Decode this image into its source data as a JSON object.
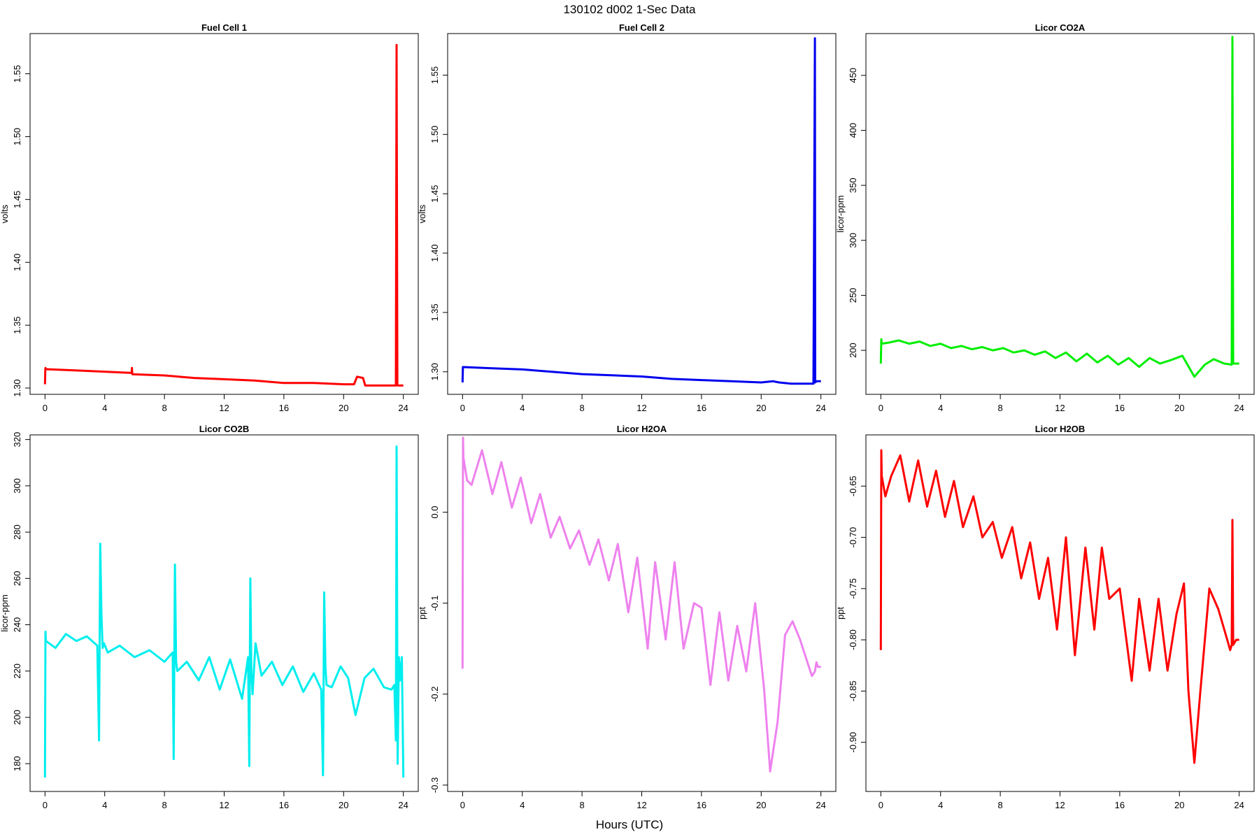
{
  "title": "130102   d002   1-Sec Data",
  "xlabel": "Hours (UTC)",
  "chart_data": [
    {
      "type": "line",
      "title": "Fuel Cell 1",
      "ylabel": "volts",
      "color": "#ff0000",
      "xlim": [
        -1.0,
        25.0
      ],
      "ylim": [
        1.295,
        1.582
      ],
      "xticks": [
        0,
        4,
        8,
        12,
        16,
        20,
        24
      ],
      "yticks": [
        1.3,
        1.35,
        1.4,
        1.45,
        1.5,
        1.55
      ],
      "ytick_labels": [
        "1.30",
        "1.35",
        "1.40",
        "1.45",
        "1.50",
        "1.55"
      ],
      "series": [
        {
          "x": [
            0,
            0.02,
            0.03,
            0.04,
            2,
            4,
            5.8,
            5.82,
            5.85,
            8,
            10,
            12,
            14,
            16,
            18,
            20,
            20.7,
            20.9,
            21.3,
            21.45,
            22,
            23.4,
            23.5,
            23.55,
            23.6,
            24
          ],
          "y": [
            1.303,
            1.315,
            1.316,
            1.315,
            1.314,
            1.313,
            1.312,
            1.316,
            1.311,
            1.31,
            1.308,
            1.307,
            1.306,
            1.304,
            1.304,
            1.303,
            1.303,
            1.309,
            1.308,
            1.302,
            1.302,
            1.302,
            1.302,
            1.573,
            1.302,
            1.302
          ]
        }
      ]
    },
    {
      "type": "line",
      "title": "Fuel Cell 2",
      "ylabel": "volts",
      "color": "#0000ee",
      "xlim": [
        -1.0,
        25.0
      ],
      "ylim": [
        1.281,
        1.585
      ],
      "xticks": [
        0,
        4,
        8,
        12,
        16,
        20,
        24
      ],
      "yticks": [
        1.3,
        1.35,
        1.4,
        1.45,
        1.5,
        1.55
      ],
      "ytick_labels": [
        "1.30",
        "1.35",
        "1.40",
        "1.45",
        "1.50",
        "1.55"
      ],
      "series": [
        {
          "x": [
            0,
            0.02,
            0.04,
            2,
            4,
            6,
            8,
            10,
            12,
            14,
            16,
            18,
            20,
            20.8,
            21.2,
            22,
            23.5,
            23.6,
            23.62,
            23.7,
            24
          ],
          "y": [
            1.291,
            1.304,
            1.304,
            1.303,
            1.302,
            1.3,
            1.298,
            1.297,
            1.296,
            1.294,
            1.293,
            1.292,
            1.291,
            1.292,
            1.291,
            1.29,
            1.29,
            1.581,
            1.291,
            1.292,
            1.292
          ]
        }
      ]
    },
    {
      "type": "line",
      "title": "Licor CO2A",
      "ylabel": "licor-ppm",
      "color": "#00ee00",
      "xlim": [
        -1.0,
        25.0
      ],
      "ylim": [
        160,
        488
      ],
      "xticks": [
        0,
        4,
        8,
        12,
        16,
        20,
        24
      ],
      "yticks": [
        200,
        250,
        300,
        350,
        400,
        450
      ],
      "ytick_labels": [
        "200",
        "250",
        "300",
        "350",
        "400",
        "450"
      ],
      "series": [
        {
          "x": [
            0,
            0.03,
            0.06,
            0.5,
            1.2,
            1.9,
            2.6,
            3.3,
            4.0,
            4.7,
            5.4,
            6.1,
            6.8,
            7.5,
            8.2,
            8.9,
            9.6,
            10.3,
            11.0,
            11.7,
            12.4,
            13.1,
            13.8,
            14.5,
            15.2,
            15.9,
            16.6,
            17.3,
            18.0,
            18.7,
            19.4,
            20.2,
            21.0,
            21.7,
            22.3,
            23.0,
            23.5,
            23.55,
            23.6,
            24
          ],
          "y": [
            188,
            210,
            206,
            207,
            209,
            206,
            208,
            204,
            206,
            202,
            204,
            201,
            203,
            200,
            202,
            198,
            200,
            196,
            199,
            193,
            198,
            190,
            197,
            189,
            195,
            187,
            193,
            185,
            193,
            188,
            191,
            195,
            176,
            187,
            192,
            188,
            187,
            485,
            188,
            188
          ]
        }
      ]
    },
    {
      "type": "line",
      "title": "Licor CO2B",
      "ylabel": "licor-ppm",
      "color": "#00eeee",
      "xlim": [
        -1.0,
        25.0
      ],
      "ylim": [
        168,
        322
      ],
      "xticks": [
        0,
        4,
        8,
        12,
        16,
        20,
        24
      ],
      "yticks": [
        180,
        200,
        220,
        240,
        260,
        280,
        300,
        320
      ],
      "ytick_labels": [
        "180",
        "200",
        "220",
        "240",
        "260",
        "280",
        "300",
        "320"
      ],
      "series": [
        {
          "x": [
            0,
            0.03,
            0.06,
            0.7,
            1.4,
            2.1,
            2.8,
            3.5,
            3.62,
            3.7,
            3.78,
            3.86,
            3.95,
            4.2,
            5.0,
            6.0,
            7.0,
            8.0,
            8.55,
            8.62,
            8.7,
            8.78,
            8.86,
            9.5,
            10.3,
            11.0,
            11.7,
            12.4,
            13.2,
            13.6,
            13.68,
            13.75,
            13.82,
            13.9,
            14.1,
            14.5,
            15.2,
            15.9,
            16.6,
            17.3,
            18.0,
            18.5,
            18.62,
            18.7,
            18.78,
            18.86,
            19.2,
            19.8,
            20.3,
            20.8,
            21.4,
            22.0,
            22.7,
            23.2,
            23.4,
            23.5,
            23.55,
            23.62,
            23.7,
            23.8,
            23.9,
            24
          ],
          "y": [
            174,
            237,
            233,
            230,
            236,
            233,
            235,
            231,
            190,
            275,
            245,
            230,
            232,
            228,
            231,
            226,
            229,
            224,
            228,
            182,
            266,
            224,
            220,
            224,
            216,
            226,
            212,
            225,
            208,
            226,
            179,
            260,
            220,
            210,
            232,
            218,
            224,
            214,
            222,
            211,
            219,
            212,
            175,
            254,
            222,
            214,
            213,
            222,
            217,
            201,
            217,
            221,
            213,
            212,
            214,
            190,
            317,
            180,
            226,
            216,
            226,
            174
          ]
        }
      ]
    },
    {
      "type": "line",
      "title": "Licor H2OA",
      "ylabel": "ppt",
      "color": "#ee82ee",
      "xlim": [
        -1.0,
        25.0
      ],
      "ylim": [
        -0.307,
        0.085
      ],
      "xticks": [
        0,
        4,
        8,
        12,
        16,
        20,
        24
      ],
      "yticks": [
        -0.3,
        -0.2,
        -0.1,
        0.0
      ],
      "ytick_labels": [
        "-0.3",
        "-0.2",
        "-0.1",
        "0.0"
      ],
      "series": [
        {
          "x": [
            0,
            0.03,
            0.06,
            0.3,
            0.6,
            1.3,
            2.0,
            2.6,
            3.3,
            3.9,
            4.6,
            5.2,
            5.9,
            6.5,
            7.2,
            7.8,
            8.5,
            9.1,
            9.8,
            10.4,
            11.1,
            11.7,
            12.4,
            12.9,
            13.6,
            14.2,
            14.8,
            15.5,
            16.0,
            16.6,
            17.2,
            17.8,
            18.4,
            19.0,
            19.6,
            20.2,
            20.6,
            21.1,
            21.6,
            22.1,
            22.6,
            23.1,
            23.4,
            23.6,
            23.7,
            23.8,
            24
          ],
          "y": [
            -0.172,
            0.082,
            0.06,
            0.035,
            0.03,
            0.068,
            0.02,
            0.055,
            0.005,
            0.038,
            -0.012,
            0.02,
            -0.028,
            -0.005,
            -0.04,
            -0.02,
            -0.058,
            -0.03,
            -0.075,
            -0.035,
            -0.11,
            -0.05,
            -0.15,
            -0.055,
            -0.14,
            -0.055,
            -0.15,
            -0.1,
            -0.105,
            -0.19,
            -0.11,
            -0.185,
            -0.125,
            -0.175,
            -0.1,
            -0.195,
            -0.285,
            -0.23,
            -0.135,
            -0.12,
            -0.14,
            -0.165,
            -0.18,
            -0.175,
            -0.165,
            -0.17,
            -0.17
          ]
        }
      ]
    },
    {
      "type": "line",
      "title": "Licor H2OB",
      "ylabel": "ppt",
      "color": "#ff0000",
      "xlim": [
        -1.0,
        25.0
      ],
      "ylim": [
        -0.948,
        -0.6
      ],
      "xticks": [
        0,
        4,
        8,
        12,
        16,
        20,
        24
      ],
      "yticks": [
        -0.9,
        -0.85,
        -0.8,
        -0.75,
        -0.7,
        -0.65
      ],
      "ytick_labels": [
        "-0.90",
        "-0.85",
        "-0.80",
        "-0.75",
        "-0.70",
        "-0.65"
      ],
      "series": [
        {
          "x": [
            0,
            0.03,
            0.06,
            0.3,
            0.7,
            1.3,
            1.9,
            2.5,
            3.1,
            3.7,
            4.3,
            4.9,
            5.5,
            6.2,
            6.8,
            7.5,
            8.1,
            8.8,
            9.4,
            10.0,
            10.6,
            11.2,
            11.8,
            12.4,
            13.0,
            13.7,
            14.3,
            14.8,
            15.3,
            16.0,
            16.8,
            17.3,
            18.0,
            18.6,
            19.2,
            19.8,
            20.3,
            20.6,
            21.0,
            21.4,
            22.0,
            22.6,
            23.2,
            23.4,
            23.5,
            23.55,
            23.6,
            23.8,
            24
          ],
          "y": [
            -0.81,
            -0.615,
            -0.64,
            -0.66,
            -0.64,
            -0.62,
            -0.665,
            -0.625,
            -0.67,
            -0.635,
            -0.68,
            -0.645,
            -0.69,
            -0.66,
            -0.7,
            -0.685,
            -0.72,
            -0.69,
            -0.74,
            -0.705,
            -0.76,
            -0.72,
            -0.79,
            -0.7,
            -0.815,
            -0.71,
            -0.79,
            -0.71,
            -0.76,
            -0.75,
            -0.84,
            -0.76,
            -0.83,
            -0.76,
            -0.83,
            -0.775,
            -0.745,
            -0.85,
            -0.92,
            -0.85,
            -0.75,
            -0.77,
            -0.8,
            -0.81,
            -0.805,
            -0.683,
            -0.805,
            -0.8,
            -0.8
          ]
        }
      ]
    }
  ]
}
